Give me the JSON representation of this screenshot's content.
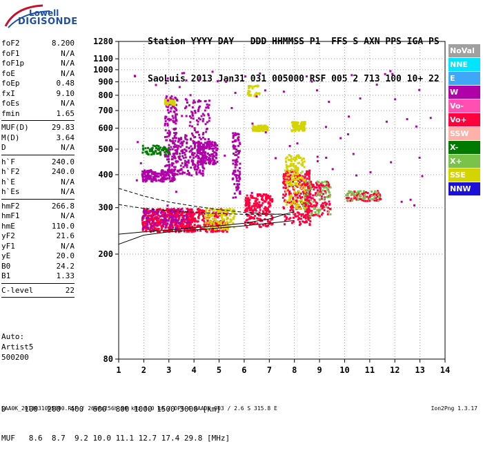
{
  "logo": {
    "top": "Lowell",
    "bottom": "DIGISONDE"
  },
  "header": {
    "line1": "Station YYYY DAY   DDD HHMMSS P1  FFS S AXN PPS IGA PS",
    "line2": "SaoLuis 2013 Jan31 031 005000 RSF 005 2 713 100 10+ 22"
  },
  "params": [
    {
      "name": "foF2",
      "value": "8.200"
    },
    {
      "name": "foF1",
      "value": "N/A"
    },
    {
      "name": "foF1p",
      "value": "N/A"
    },
    {
      "name": "foE",
      "value": "N/A"
    },
    {
      "name": "foEp",
      "value": "0.48"
    },
    {
      "name": "fxI",
      "value": "9.10"
    },
    {
      "name": "foEs",
      "value": "N/A"
    },
    {
      "name": "fmin",
      "value": "1.65"
    },
    {
      "sep": true
    },
    {
      "name": "MUF(D)",
      "value": "29.83"
    },
    {
      "name": "M(D)",
      "value": "3.64"
    },
    {
      "name": "D",
      "value": "N/A"
    },
    {
      "sep": true
    },
    {
      "name": "h`F",
      "value": "240.0"
    },
    {
      "name": "h`F2",
      "value": "240.0"
    },
    {
      "name": "h`E",
      "value": "N/A"
    },
    {
      "name": "h`Es",
      "value": "N/A"
    },
    {
      "sep": true
    },
    {
      "name": "hmF2",
      "value": "266.8"
    },
    {
      "name": "hmF1",
      "value": "N/A"
    },
    {
      "name": "hmE",
      "value": "110.0"
    },
    {
      "name": "yF2",
      "value": "21.6"
    },
    {
      "name": "yF1",
      "value": "N/A"
    },
    {
      "name": "yE",
      "value": "20.0"
    },
    {
      "name": "B0",
      "value": "24.2"
    },
    {
      "name": "B1",
      "value": "1.33"
    },
    {
      "sep": true
    },
    {
      "name": "C-level",
      "value": "22"
    },
    {
      "sep": true
    }
  ],
  "auto": {
    "line1": "Auto:",
    "line2": "Artist5",
    "line3": "500200"
  },
  "legend": [
    {
      "label": "NoVal",
      "color": "#a0a0a0",
      "text": "#ffffff"
    },
    {
      "label": "NNE",
      "color": "#00e5ff",
      "text": "#ffffff"
    },
    {
      "label": "E",
      "color": "#3fa7f5",
      "text": "#ffffff"
    },
    {
      "label": "W",
      "color": "#b000a8",
      "text": "#ffffff"
    },
    {
      "label": "Vo-",
      "color": "#ff4fb0",
      "text": "#ffffff"
    },
    {
      "label": "Vo+",
      "color": "#ff003c",
      "text": "#ffffff"
    },
    {
      "label": "SSW",
      "color": "#ffb0a8",
      "text": "#ffffff"
    },
    {
      "label": "X-",
      "color": "#007a00",
      "text": "#ffffff"
    },
    {
      "label": "X+",
      "color": "#7ac24a",
      "text": "#ffffff"
    },
    {
      "label": "SSE",
      "color": "#d4d400",
      "text": "#ffffff"
    },
    {
      "label": "NNW",
      "color": "#1a10d8",
      "text": "#ffffff"
    }
  ],
  "bottom": {
    "d_line": "D    100  200  400  600  800 1000 1500 3000 [km]",
    "muf_line": "MUF   8.6  8.7  9.2 10.0 11.1 12.7 17.4 29.8 [MHz]"
  },
  "footer": {
    "left": "SAA0K_2013031005000.RSF / 260fx256h 50 kHz 5.0 km / DPS-4 SAA0K 903 / 2.6 S 315.8 E",
    "right": "Ion2Png 1.3.17"
  },
  "chart_data": {
    "type": "scatter",
    "title": "",
    "xlabel": "",
    "ylabel": "",
    "xlim": [
      1,
      14
    ],
    "ylim_scale": "log",
    "xticks": [
      1,
      2,
      3,
      4,
      5,
      6,
      7,
      8,
      9,
      10,
      11,
      12,
      13,
      14
    ],
    "yticks": [
      80,
      200,
      300,
      400,
      500,
      600,
      700,
      800,
      900,
      1000,
      1100,
      1280
    ],
    "grid": true,
    "clusters": [
      {
        "x": [
          1.9,
          3.9
        ],
        "y": [
          245,
          300
        ],
        "color": "#ff003c",
        "n": 420
      },
      {
        "x": [
          1.9,
          3.9
        ],
        "y": [
          250,
          300
        ],
        "color": "#b000a8",
        "n": 150
      },
      {
        "x": [
          3.7,
          5.3
        ],
        "y": [
          245,
          300
        ],
        "color": "#ff003c",
        "n": 220
      },
      {
        "x": [
          4.4,
          5.6
        ],
        "y": [
          250,
          300
        ],
        "color": "#d4d400",
        "n": 120
      },
      {
        "x": [
          6.0,
          7.1
        ],
        "y": [
          255,
          340
        ],
        "color": "#ff003c",
        "n": 200
      },
      {
        "x": [
          7.5,
          8.6
        ],
        "y": [
          260,
          420
        ],
        "color": "#ff003c",
        "n": 260
      },
      {
        "x": [
          7.6,
          8.4
        ],
        "y": [
          300,
          480
        ],
        "color": "#d4d400",
        "n": 160
      },
      {
        "x": [
          8.3,
          9.4
        ],
        "y": [
          280,
          380
        ],
        "color": "#ff003c",
        "n": 160
      },
      {
        "x": [
          8.3,
          9.4
        ],
        "y": [
          280,
          380
        ],
        "color": "#7ac24a",
        "n": 60
      },
      {
        "x": [
          10.0,
          11.4
        ],
        "y": [
          320,
          350
        ],
        "color": "#ff003c",
        "n": 70
      },
      {
        "x": [
          10.0,
          11.4
        ],
        "y": [
          320,
          350
        ],
        "color": "#7ac24a",
        "n": 40
      },
      {
        "x": [
          1.9,
          3.2
        ],
        "y": [
          380,
          420
        ],
        "color": "#b000a8",
        "n": 180
      },
      {
        "x": [
          2.8,
          4.4
        ],
        "y": [
          400,
          560
        ],
        "color": "#b000a8",
        "n": 260
      },
      {
        "x": [
          2.8,
          3.3
        ],
        "y": [
          560,
          800
        ],
        "color": "#b000a8",
        "n": 90
      },
      {
        "x": [
          3.6,
          4.6
        ],
        "y": [
          560,
          780
        ],
        "color": "#b000a8",
        "n": 70
      },
      {
        "x": [
          1.9,
          3.0
        ],
        "y": [
          480,
          520
        ],
        "color": "#007a00",
        "n": 60
      },
      {
        "x": [
          4.1,
          4.9
        ],
        "y": [
          440,
          540
        ],
        "color": "#b000a8",
        "n": 150
      },
      {
        "x": [
          5.5,
          5.8
        ],
        "y": [
          330,
          580
        ],
        "color": "#b000a8",
        "n": 90
      },
      {
        "x": [
          6.3,
          6.9
        ],
        "y": [
          590,
          620
        ],
        "color": "#d4d400",
        "n": 80
      },
      {
        "x": [
          7.8,
          8.4
        ],
        "y": [
          590,
          640
        ],
        "color": "#d4d400",
        "n": 90
      },
      {
        "x": [
          2.8,
          3.2
        ],
        "y": [
          740,
          780
        ],
        "color": "#d4d400",
        "n": 40
      },
      {
        "x": [
          6.1,
          6.6
        ],
        "y": [
          800,
          880
        ],
        "color": "#d4d400",
        "n": 30
      },
      {
        "x": [
          1.5,
          13.5
        ],
        "y": [
          300,
          1000
        ],
        "color": "#b000a8",
        "n": 80
      }
    ],
    "traces": [
      {
        "name": "",
        "style": "solid",
        "x": [
          1.0,
          2.0,
          3.0,
          4.0,
          5.0,
          6.0,
          7.0,
          8.0
        ],
        "y": [
          218,
          236,
          243,
          247,
          251,
          256,
          262,
          268
        ]
      },
      {
        "name": "",
        "style": "solid",
        "x": [
          1.0,
          2.0,
          3.0,
          4.0,
          5.0,
          6.0,
          7.0,
          8.0
        ],
        "y": [
          238,
          243,
          247,
          252,
          256,
          262,
          272,
          290
        ]
      },
      {
        "name": "",
        "style": "dashed",
        "x": [
          1.0,
          2.0,
          3.0,
          4.0,
          5.0,
          6.0,
          7.0,
          8.0
        ],
        "y": [
          355,
          332,
          315,
          304,
          295,
          288,
          284,
          282
        ]
      },
      {
        "name": "",
        "style": "dashed",
        "x": [
          1.0,
          2.0,
          3.0,
          4.0,
          5.0,
          6.0,
          7.0,
          7.8
        ],
        "y": [
          308,
          298,
          292,
          288,
          285,
          283,
          283,
          284
        ]
      }
    ]
  }
}
